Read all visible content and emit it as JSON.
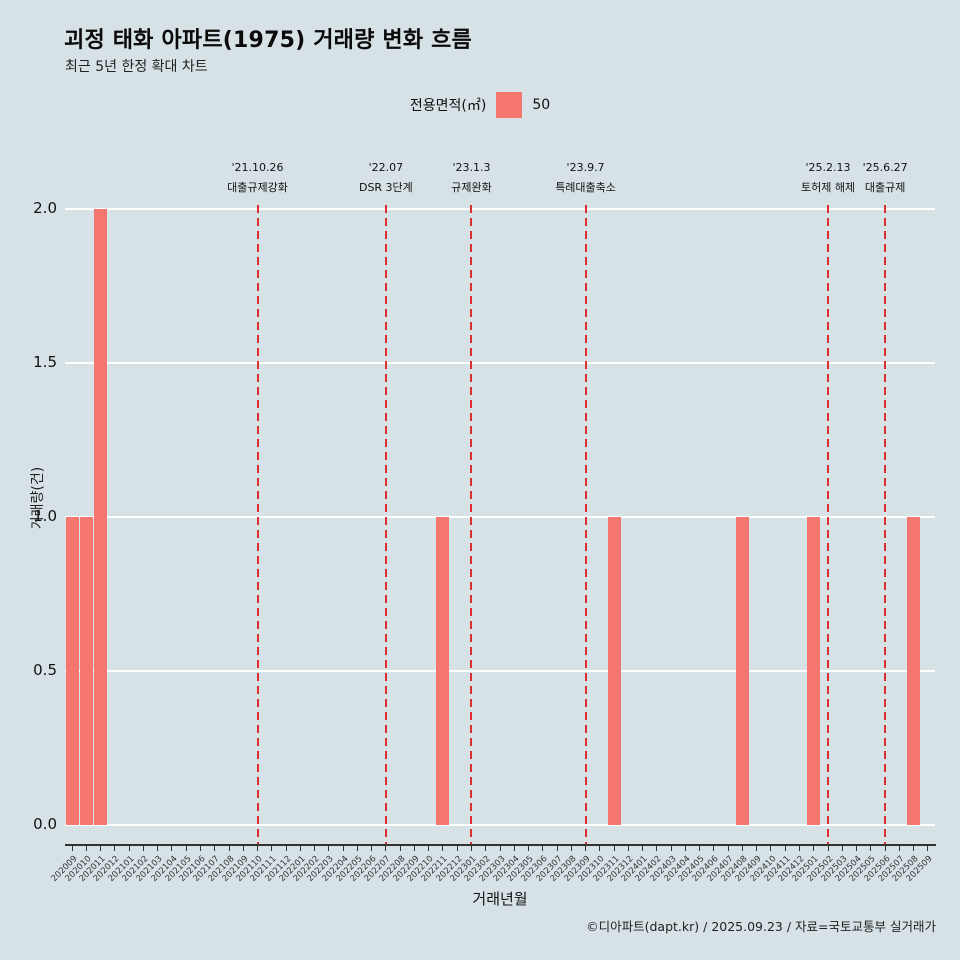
{
  "page": {
    "title": "괴정 태화 아파트(1975) 거래량 변화 흐름",
    "subtitle": "최근 5년 한정 확대 차트",
    "footer": "©디아파트(dapt.kr) / 2025.09.23 / 자료=국토교통부 실거래가",
    "background_color": "#d7e2e7"
  },
  "legend": {
    "label": "전용면적(㎡)",
    "series_name": "50",
    "swatch_color": "#f4766f"
  },
  "chart_data": {
    "type": "bar",
    "title": "괴정 태화 아파트(1975) 거래량 변화 흐름",
    "subtitle": "최근 5년 한정 확대 차트",
    "xlabel": "거래년월",
    "ylabel": "거래량(건)",
    "ylim": [
      0.0,
      2.0
    ],
    "yticks": [
      "0.0",
      "0.5",
      "1.0",
      "1.5",
      "2.0"
    ],
    "grid": true,
    "legend_position": "top-center",
    "bar_color": "#f4766f",
    "annotation_line_color": "#dd2f2f",
    "categories": [
      "202009",
      "202010",
      "202011",
      "202012",
      "202101",
      "202102",
      "202103",
      "202104",
      "202105",
      "202106",
      "202107",
      "202108",
      "202109",
      "202110",
      "202111",
      "202112",
      "202201",
      "202202",
      "202203",
      "202204",
      "202205",
      "202206",
      "202207",
      "202208",
      "202209",
      "202210",
      "202211",
      "202212",
      "202301",
      "202302",
      "202303",
      "202304",
      "202305",
      "202306",
      "202307",
      "202308",
      "202309",
      "202310",
      "202311",
      "202312",
      "202401",
      "202402",
      "202403",
      "202404",
      "202405",
      "202406",
      "202407",
      "202408",
      "202409",
      "202410",
      "202411",
      "202412",
      "202501",
      "202502",
      "202503",
      "202504",
      "202505",
      "202506",
      "202507",
      "202508",
      "202509"
    ],
    "series": [
      {
        "name": "50",
        "color": "#f4766f",
        "values": [
          1,
          1,
          2,
          0,
          0,
          0,
          0,
          0,
          0,
          0,
          0,
          0,
          0,
          0,
          0,
          0,
          0,
          0,
          0,
          0,
          0,
          0,
          0,
          0,
          0,
          0,
          1,
          0,
          0,
          0,
          0,
          0,
          0,
          0,
          0,
          0,
          0,
          0,
          1,
          0,
          0,
          0,
          0,
          0,
          0,
          0,
          0,
          1,
          0,
          0,
          0,
          0,
          1,
          0,
          0,
          0,
          0,
          0,
          0,
          1,
          0
        ]
      }
    ],
    "annotations": [
      {
        "month": "202110",
        "date": "'21.10.26",
        "label": "대출규제강화"
      },
      {
        "month": "202207",
        "date": "'22.07",
        "label": "DSR 3단계"
      },
      {
        "month": "202301",
        "date": "'23.1.3",
        "label": "규제완화"
      },
      {
        "month": "202309",
        "date": "'23.9.7",
        "label": "특례대출축소"
      },
      {
        "month": "202502",
        "date": "'25.2.13",
        "label": "토허제 해제"
      },
      {
        "month": "202506",
        "date": "'25.6.27",
        "label": "대출규제"
      }
    ]
  }
}
